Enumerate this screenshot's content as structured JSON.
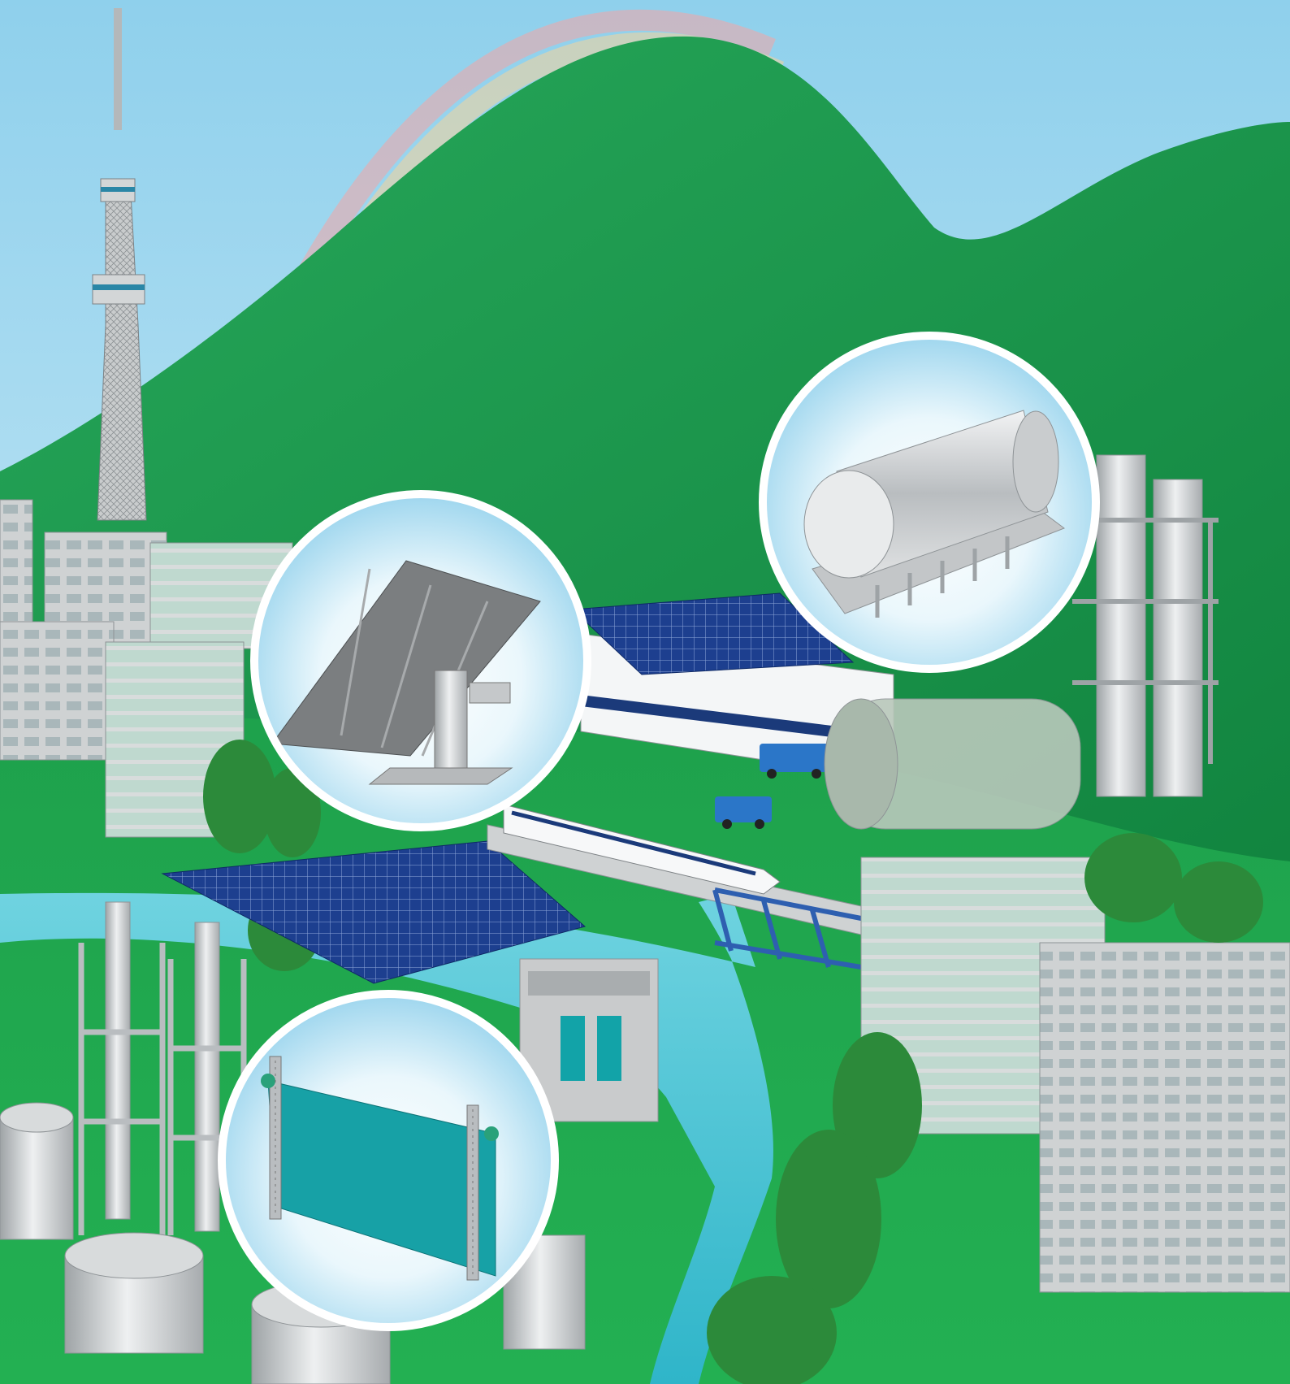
{
  "scene": {
    "kind": "illustration",
    "palette": {
      "sky_top": "#9fd7ee",
      "sky_bottom": "#d9f1f8",
      "mountain": "#1e9a4f",
      "mountain_shade": "#14813f",
      "ground": "#1fa64a",
      "ground_light": "#2cbf5a",
      "river": "#48c3d6",
      "building": "#c9cbcc",
      "building_dark": "#9fa3a5",
      "solar_panel": "#1d3f8f",
      "truck": "#2b76c8",
      "bridge": "#2e5fb0",
      "gate": "#12a3a8",
      "tree": "#2c8a3a",
      "bubble_ring": "#ffffff"
    },
    "features": [
      {
        "name": "sky-tower",
        "icon": "tower-icon"
      },
      {
        "name": "rainbow",
        "icon": "rainbow-icon"
      },
      {
        "name": "green-mountain",
        "icon": "mountain-icon"
      },
      {
        "name": "solar-roof-factory",
        "icon": "factory-icon"
      },
      {
        "name": "solar-field",
        "icon": "solar-panel-icon"
      },
      {
        "name": "bullet-train",
        "icon": "train-icon"
      },
      {
        "name": "truss-bridge",
        "icon": "bridge-icon"
      },
      {
        "name": "river",
        "icon": "river-icon"
      },
      {
        "name": "sluice-gate",
        "icon": "dam-icon"
      },
      {
        "name": "storage-tanks",
        "icon": "tank-icon"
      },
      {
        "name": "distillation-towers",
        "icon": "tower-icon"
      },
      {
        "name": "office-buildings",
        "icon": "building-icon"
      },
      {
        "name": "delivery-trucks",
        "icon": "truck-icon"
      }
    ],
    "callouts": [
      {
        "name": "solar-tracker",
        "icon": "solar-tracker-icon"
      },
      {
        "name": "pressure-vessel",
        "icon": "pressure-vessel-icon"
      },
      {
        "name": "sluice-gate-panel",
        "icon": "gate-panel-icon"
      }
    ]
  }
}
